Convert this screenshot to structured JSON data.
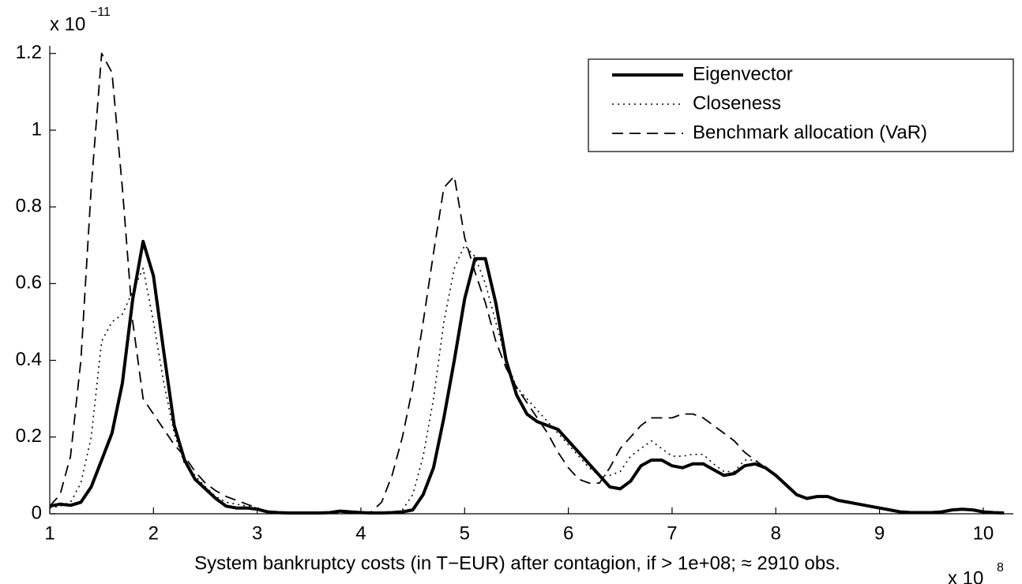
{
  "chart_data": {
    "type": "line",
    "xlabel": "System bankruptcy costs (in T−EUR) after contagion, if > 1e+08; ≈ 2910 obs.",
    "x_multiplier": "x 10",
    "x_exponent": "8",
    "y_multiplier": "x 10",
    "y_exponent": "−11",
    "x": [
      1,
      1.1,
      1.2,
      1.3,
      1.4,
      1.5,
      1.6,
      1.7,
      1.8,
      1.9,
      2,
      2.1,
      2.2,
      2.3,
      2.4,
      2.5,
      2.6,
      2.7,
      2.8,
      2.9,
      3,
      3.1,
      3.2,
      3.3,
      3.4,
      3.5,
      3.6,
      3.7,
      3.8,
      3.9,
      4,
      4.1,
      4.2,
      4.3,
      4.4,
      4.5,
      4.6,
      4.7,
      4.8,
      4.9,
      5,
      5.1,
      5.2,
      5.3,
      5.4,
      5.5,
      5.6,
      5.7,
      5.8,
      5.9,
      6,
      6.1,
      6.2,
      6.3,
      6.4,
      6.5,
      6.6,
      6.7,
      6.8,
      6.9,
      7,
      7.1,
      7.2,
      7.3,
      7.4,
      7.5,
      7.6,
      7.7,
      7.8,
      7.9,
      8,
      8.1,
      8.2,
      8.3,
      8.4,
      8.5,
      8.6,
      8.7,
      8.8,
      8.9,
      9,
      9.1,
      9.2,
      9.3,
      9.4,
      9.5,
      9.6,
      9.7,
      9.8,
      9.9,
      10,
      10.1,
      10.2
    ],
    "series": [
      {
        "name": "Eigenvector",
        "color": "#000000",
        "line_style": "solid",
        "line_width": 4,
        "values": [
          0.02,
          0.025,
          0.022,
          0.03,
          0.07,
          0.14,
          0.21,
          0.34,
          0.56,
          0.71,
          0.62,
          0.42,
          0.23,
          0.14,
          0.09,
          0.065,
          0.04,
          0.02,
          0.015,
          0.015,
          0.012,
          0.005,
          0.003,
          0.002,
          0.002,
          0.002,
          0.002,
          0.003,
          0.007,
          0.005,
          0.003,
          0.002,
          0.002,
          0.003,
          0.005,
          0.01,
          0.05,
          0.12,
          0.25,
          0.4,
          0.56,
          0.665,
          0.665,
          0.55,
          0.4,
          0.31,
          0.26,
          0.24,
          0.23,
          0.22,
          0.19,
          0.16,
          0.13,
          0.1,
          0.07,
          0.065,
          0.085,
          0.125,
          0.14,
          0.14,
          0.125,
          0.12,
          0.13,
          0.13,
          0.115,
          0.1,
          0.105,
          0.125,
          0.13,
          0.12,
          0.1,
          0.075,
          0.05,
          0.04,
          0.045,
          0.045,
          0.035,
          0.03,
          0.025,
          0.02,
          0.015,
          0.01,
          0.005,
          0.003,
          0.003,
          0.003,
          0.005,
          0.01,
          0.012,
          0.01,
          0.005,
          0.003,
          0.002
        ]
      },
      {
        "name": "Closeness",
        "color": "#000000",
        "line_style": "dotted",
        "line_width": 1.6,
        "values": [
          0.015,
          0.02,
          0.03,
          0.08,
          0.2,
          0.45,
          0.5,
          0.52,
          0.58,
          0.64,
          0.5,
          0.34,
          0.21,
          0.13,
          0.1,
          0.07,
          0.045,
          0.03,
          0.025,
          0.02,
          0.015,
          0.005,
          0.003,
          0.003,
          0.003,
          0.003,
          0.003,
          0.003,
          0.003,
          0.003,
          0.003,
          0.003,
          0.003,
          0.003,
          0.01,
          0.05,
          0.15,
          0.3,
          0.5,
          0.64,
          0.7,
          0.67,
          0.6,
          0.5,
          0.4,
          0.33,
          0.3,
          0.27,
          0.24,
          0.21,
          0.18,
          0.15,
          0.12,
          0.1,
          0.1,
          0.11,
          0.15,
          0.17,
          0.19,
          0.17,
          0.15,
          0.15,
          0.155,
          0.155,
          0.13,
          0.11,
          0.11,
          0.14,
          0.14,
          0.12,
          0.1,
          0.075,
          0.05,
          0.04,
          0.045,
          0.045,
          0.035,
          0.03,
          0.025,
          0.02,
          0.015,
          0.01,
          0.005,
          0.003,
          0.003,
          0.003,
          0.005,
          0.01,
          0.012,
          0.01,
          0.005,
          0.003,
          0.002
        ]
      },
      {
        "name": "Benchmark allocation (VaR)",
        "color": "#000000",
        "line_style": "dashed",
        "line_width": 1.8,
        "values": [
          0.02,
          0.05,
          0.15,
          0.4,
          0.85,
          1.2,
          1.15,
          0.85,
          0.5,
          0.3,
          0.26,
          0.22,
          0.18,
          0.15,
          0.11,
          0.08,
          0.06,
          0.045,
          0.035,
          0.025,
          0.015,
          0.005,
          0.003,
          0.003,
          0.003,
          0.003,
          0.003,
          0.003,
          0.003,
          0.003,
          0.003,
          0.005,
          0.03,
          0.1,
          0.2,
          0.33,
          0.5,
          0.68,
          0.85,
          0.88,
          0.72,
          0.63,
          0.55,
          0.45,
          0.38,
          0.33,
          0.29,
          0.25,
          0.21,
          0.16,
          0.12,
          0.09,
          0.08,
          0.08,
          0.12,
          0.17,
          0.2,
          0.23,
          0.25,
          0.25,
          0.25,
          0.26,
          0.26,
          0.25,
          0.23,
          0.21,
          0.19,
          0.16,
          0.14,
          0.12,
          0.1,
          0.075,
          0.05,
          0.04,
          0.045,
          0.045,
          0.035,
          0.03,
          0.025,
          0.02,
          0.015,
          0.01,
          0.005,
          0.003,
          0.003,
          0.003,
          0.005,
          0.01,
          0.012,
          0.01,
          0.005,
          0.003,
          0.002
        ]
      }
    ],
    "xlim": [
      1,
      10.29
    ],
    "xticks": [
      1,
      2,
      3,
      4,
      5,
      6,
      7,
      8,
      9,
      10
    ],
    "ylim": [
      0,
      1.22
    ],
    "yticks": [
      0,
      0.2,
      0.4,
      0.6,
      0.8,
      1,
      1.2
    ],
    "grid": false,
    "legend": "upper right"
  }
}
